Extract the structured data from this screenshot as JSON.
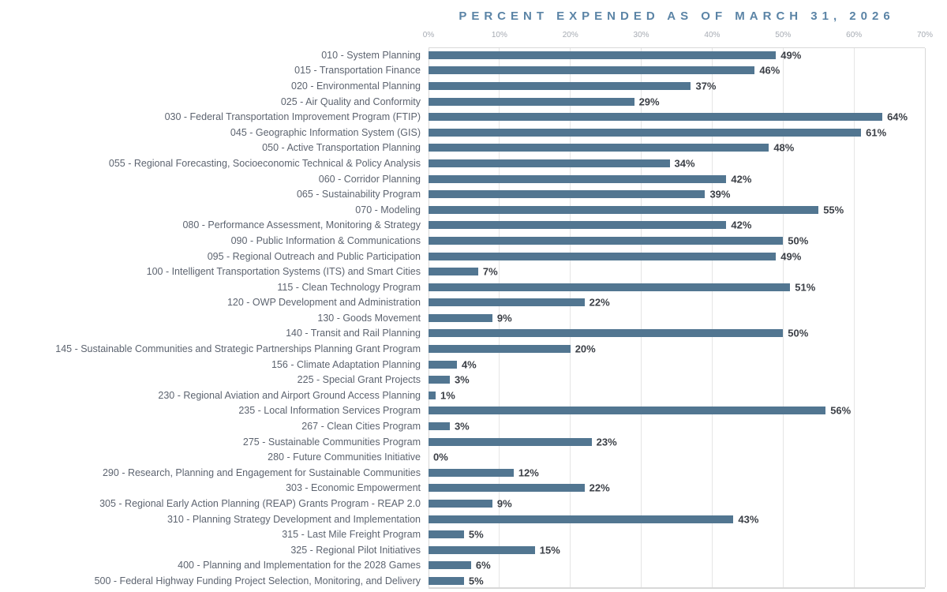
{
  "chart_data": {
    "type": "bar",
    "orientation": "horizontal",
    "title": "PERCENT EXPENDED AS OF MARCH 31, 2026",
    "xlabel": "",
    "ylabel": "",
    "x_ticks": [
      "0%",
      "10%",
      "20%",
      "30%",
      "40%",
      "50%",
      "60%",
      "70%"
    ],
    "xlim": [
      0,
      70
    ],
    "unit": "%",
    "grid": true,
    "legend": false,
    "categories": [
      "010 - System Planning",
      "015 - Transportation Finance",
      "020 - Environmental Planning",
      "025 - Air Quality and Conformity",
      "030 - Federal Transportation Improvement Program (FTIP)",
      "045 - Geographic Information System (GIS)",
      "050 - Active Transportation Planning",
      "055 - Regional Forecasting, Socioeconomic Technical & Policy Analysis",
      "060 - Corridor Planning",
      "065 - Sustainability Program",
      "070 - Modeling",
      "080 - Performance Assessment, Monitoring & Strategy",
      "090 - Public Information & Communications",
      "095 - Regional Outreach and Public Participation",
      "100 - Intelligent Transportation Systems (ITS) and Smart Cities",
      "115 - Clean Technology Program",
      "120 - OWP Development and Administration",
      "130 - Goods Movement",
      "140 - Transit and Rail Planning",
      "145 - Sustainable Communities and Strategic Partnerships Planning Grant Program",
      "156 - Climate Adaptation Planning",
      "225 - Special Grant Projects",
      "230 - Regional Aviation and Airport Ground Access Planning",
      "235 - Local Information Services Program",
      "267 - Clean Cities Program",
      "275 - Sustainable Communities Program",
      "280 - Future Communities Initiative",
      "290 - Research, Planning and Engagement for Sustainable Communities",
      "303 - Economic Empowerment",
      "305 - Regional Early Action Planning (REAP) Grants Program - REAP 2.0",
      "310 - Planning Strategy Development and Implementation",
      "315 - Last Mile Freight Program",
      "325 - Regional Pilot Initiatives",
      "400 - Planning and Implementation for the 2028 Games",
      "500 - Federal Highway Funding Project Selection, Monitoring, and Delivery"
    ],
    "values": [
      49,
      46,
      37,
      29,
      64,
      61,
      48,
      34,
      42,
      39,
      55,
      42,
      50,
      49,
      7,
      51,
      22,
      9,
      50,
      20,
      4,
      3,
      1,
      56,
      3,
      23,
      0,
      12,
      22,
      9,
      43,
      5,
      15,
      6,
      5
    ],
    "colors": {
      "bar": "#527691",
      "title": "#5b84a6",
      "gridline": "#e5e5e5",
      "frame": "#d8d8d8",
      "category_text": "#5d6470",
      "value_text": "#3c4047",
      "tick_text": "#a6abb3",
      "background": "#ffffff"
    }
  }
}
